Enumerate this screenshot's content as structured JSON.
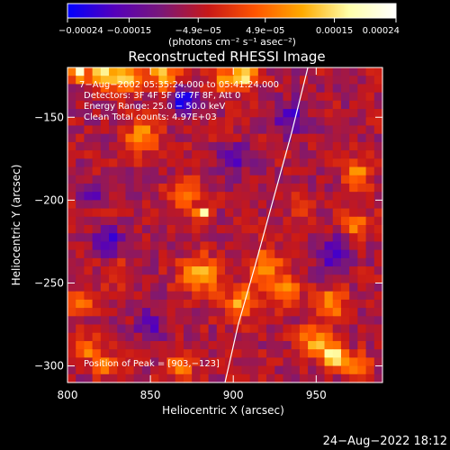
{
  "chart_data": {
    "type": "heatmap",
    "title": "Reconstructed RHESSI Image",
    "xlabel": "Heliocentric X (arcsec)",
    "ylabel": "Heliocentric Y (arcsec)",
    "x_range": [
      800,
      990
    ],
    "y_range": [
      -310,
      -120
    ],
    "x_ticks": [
      800,
      850,
      900,
      950
    ],
    "y_ticks": [
      -150,
      -200,
      -250,
      -300
    ],
    "x_tick_labels": [
      "800",
      "850",
      "900",
      "950"
    ],
    "y_tick_labels": [
      "−150",
      "−200",
      "−250",
      "−300"
    ],
    "grid": false,
    "colorbar": {
      "range": [
        -0.00024,
        0.00024
      ],
      "tick_values": [
        -0.00024,
        -0.00015,
        -4.9e-05,
        4.9e-05,
        0.00015,
        0.00024
      ],
      "tick_labels": [
        "−0.00024",
        "−0.00015",
        "−4.9e−05",
        "4.9e−05",
        "0.00015",
        "0.00024"
      ],
      "units": "(photons cm⁻² s⁻¹ asec⁻²)",
      "colors": [
        "#0000ff",
        "#5500bb",
        "#7a1878",
        "#c81818",
        "#ff5500",
        "#ffaa00",
        "#ffffaa",
        "#ffffff"
      ]
    },
    "info_lines": [
      "7−Aug−2002 05:35:24.000 to 05:41:24.000",
      "Detectors: 3F 4F 5F 6F 7F 8F, Att 0",
      "Energy Range: 25.0 − 50.0 keV",
      "Clean    Total counts: 4.97E+03"
    ],
    "peak_label": "Position of Peak = [903,−123]",
    "limb_curve": {
      "x": [
        895,
        903,
        913,
        924,
        935,
        945
      ],
      "y": [
        -310,
        -275,
        -240,
        -200,
        -160,
        -120
      ]
    },
    "intensity_sources": [
      {
        "x": 806,
        "y": -123,
        "amplitude": 0.00024,
        "width": 4
      },
      {
        "x": 821,
        "y": -124,
        "amplitude": 0.00024,
        "width": 5
      },
      {
        "x": 836,
        "y": -126,
        "amplitude": 0.0002,
        "width": 6
      },
      {
        "x": 858,
        "y": -125,
        "amplitude": 0.00018,
        "width": 6
      },
      {
        "x": 895,
        "y": -127,
        "amplitude": 0.00012,
        "width": 6
      },
      {
        "x": 908,
        "y": -125,
        "amplitude": 0.0002,
        "width": 5
      },
      {
        "x": 845,
        "y": -162,
        "amplitude": 0.00015,
        "width": 7
      },
      {
        "x": 870,
        "y": -195,
        "amplitude": 0.00014,
        "width": 6
      },
      {
        "x": 882,
        "y": -208,
        "amplitude": 0.00024,
        "width": 3
      },
      {
        "x": 880,
        "y": -245,
        "amplitude": 0.00016,
        "width": 8
      },
      {
        "x": 920,
        "y": -240,
        "amplitude": 0.00014,
        "width": 7
      },
      {
        "x": 932,
        "y": -255,
        "amplitude": 0.00014,
        "width": 6
      },
      {
        "x": 905,
        "y": -262,
        "amplitude": 0.00015,
        "width": 7
      },
      {
        "x": 960,
        "y": -262,
        "amplitude": 0.00014,
        "width": 6
      },
      {
        "x": 975,
        "y": -185,
        "amplitude": 0.00013,
        "width": 6
      },
      {
        "x": 975,
        "y": -215,
        "amplitude": 0.00012,
        "width": 6
      },
      {
        "x": 950,
        "y": -285,
        "amplitude": 0.00015,
        "width": 7
      },
      {
        "x": 960,
        "y": -295,
        "amplitude": 0.00022,
        "width": 5
      },
      {
        "x": 975,
        "y": -300,
        "amplitude": 0.00016,
        "width": 5
      },
      {
        "x": 868,
        "y": -300,
        "amplitude": 0.00013,
        "width": 6
      },
      {
        "x": 812,
        "y": -290,
        "amplitude": 0.00014,
        "width": 5
      },
      {
        "x": 808,
        "y": -262,
        "amplitude": 0.00012,
        "width": 5
      },
      {
        "x": 830,
        "y": -245,
        "amplitude": 8e-05,
        "width": 6
      },
      {
        "x": 824,
        "y": -300,
        "amplitude": 0.00012,
        "width": 5
      },
      {
        "x": 940,
        "y": -205,
        "amplitude": 8e-05,
        "width": 5
      }
    ],
    "negative_sources": [
      {
        "x": 870,
        "y": -140,
        "amplitude": 0.00015,
        "width": 6
      },
      {
        "x": 935,
        "y": -150,
        "amplitude": 0.00012,
        "width": 7
      },
      {
        "x": 825,
        "y": -225,
        "amplitude": 0.00012,
        "width": 6
      },
      {
        "x": 960,
        "y": -232,
        "amplitude": 0.00012,
        "width": 7
      },
      {
        "x": 815,
        "y": -195,
        "amplitude": 0.0001,
        "width": 5
      },
      {
        "x": 900,
        "y": -175,
        "amplitude": 0.00011,
        "width": 6
      },
      {
        "x": 850,
        "y": -275,
        "amplitude": 0.00011,
        "width": 6
      }
    ]
  },
  "footer": {
    "date": "24−Aug−2022 18:12"
  }
}
